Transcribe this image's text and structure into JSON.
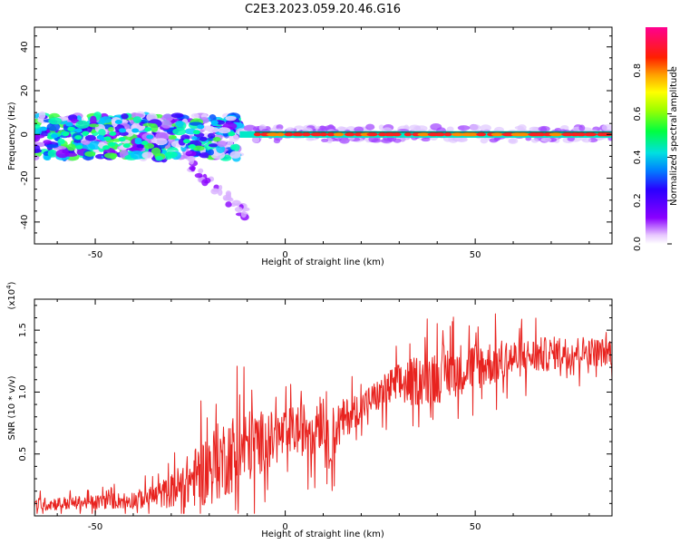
{
  "title": "C2E3.2023.059.20.46.G16",
  "chart_data": [
    {
      "type": "heatmap",
      "xlabel": "Height of straight line (km)",
      "ylabel": "Frequency (Hz)",
      "xlim": [
        -66,
        86
      ],
      "ylim": [
        -50,
        49
      ],
      "xticks": [
        -50,
        0,
        50
      ],
      "yticks": [
        -40,
        -20,
        0,
        20,
        40
      ],
      "colorbar": {
        "label": "Normalized spectral amplitude",
        "range": [
          0.0,
          1.0
        ],
        "ticks": [
          "0.0",
          "0.2",
          "0.4",
          "0.6",
          "0.8"
        ],
        "colormap": "rainbow (violet-blue-cyan-green-yellow-orange-red-magenta)"
      },
      "features": [
        {
          "name": "broadband scatter",
          "x_range": [
            -66,
            -12
          ],
          "freq_range": [
            -12,
            10
          ]
        },
        {
          "name": "narrow line at ~0 Hz",
          "x_range": [
            -12,
            86
          ],
          "freq": 0
        },
        {
          "name": "downward streak",
          "x_range": [
            -25,
            -10
          ],
          "freq_range": [
            -38,
            -10
          ]
        }
      ]
    },
    {
      "type": "line",
      "xlabel": "Height of straight line (km)",
      "ylabel": "SNR (10 * v/v)",
      "yscale_label": "(x10",
      "yscale_exp": "4",
      "yscale_close": ")",
      "xlim": [
        -66,
        86
      ],
      "ylim": [
        0,
        17500
      ],
      "xticks": [
        -50,
        0,
        50
      ],
      "yticks": [
        {
          "value": 5000,
          "label": "0.5"
        },
        {
          "value": 10000,
          "label": "1.0"
        },
        {
          "value": 15000,
          "label": "1.5"
        }
      ],
      "color": "#e8231f",
      "series": [
        {
          "x": [
            -66,
            -60,
            -55,
            -50,
            -45,
            -40,
            -35,
            -30,
            -25,
            -22,
            -20,
            -18,
            -15,
            -12,
            -10,
            -8,
            -5,
            -3,
            0,
            2,
            5,
            7,
            9,
            10,
            11,
            12,
            14,
            16,
            18,
            20,
            22,
            25,
            28,
            30,
            33,
            35,
            38,
            40,
            42,
            45,
            48,
            50,
            52,
            55,
            58,
            60,
            63,
            65,
            68,
            70,
            72,
            75,
            78,
            80,
            83,
            86
          ],
          "y_mean": [
            900,
            1000,
            1050,
            1100,
            1200,
            1300,
            1500,
            2000,
            2900,
            3400,
            3900,
            4300,
            4900,
            5300,
            5600,
            5900,
            6000,
            6200,
            6600,
            6900,
            7000,
            7500,
            8000,
            8100,
            5000,
            6500,
            7300,
            7900,
            8400,
            8800,
            9300,
            9800,
            10400,
            10600,
            10800,
            11000,
            11200,
            11400,
            11600,
            11800,
            12000,
            12100,
            12200,
            12400,
            12600,
            12700,
            12800,
            12900,
            13000,
            13100,
            13200,
            13200,
            13300,
            13300,
            13200,
            13300
          ],
          "y_spread": [
            600,
            600,
            600,
            650,
            700,
            800,
            1000,
            1500,
            2500,
            3000,
            3400,
            3500,
            3600,
            3600,
            3400,
            3000,
            2700,
            2500,
            2200,
            2200,
            2400,
            2800,
            3000,
            3000,
            2800,
            2500,
            2200,
            1800,
            1500,
            1400,
            1400,
            1500,
            1800,
            1900,
            2200,
            2300,
            2500,
            2600,
            2600,
            2400,
            2300,
            2200,
            2100,
            2000,
            1900,
            1800,
            1700,
            1600,
            1600,
            1500,
            1500,
            1400,
            1400,
            1300,
            1300,
            1300
          ]
        }
      ]
    }
  ]
}
